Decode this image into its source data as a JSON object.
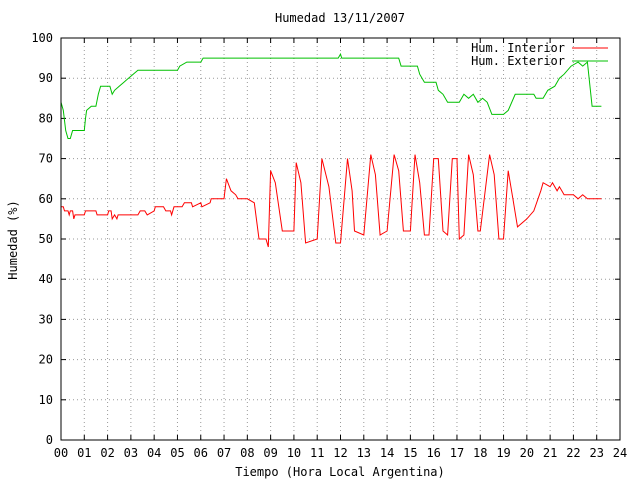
{
  "chart_data": {
    "type": "line",
    "title": "Humedad 13/11/2007",
    "xlabel": "Tiempo (Hora Local Argentina)",
    "ylabel": "Humedad (%)",
    "xlim": [
      0,
      24
    ],
    "ylim": [
      0,
      100
    ],
    "xticks": [
      "00",
      "01",
      "02",
      "03",
      "04",
      "05",
      "06",
      "07",
      "08",
      "09",
      "10",
      "11",
      "12",
      "13",
      "14",
      "15",
      "16",
      "17",
      "18",
      "19",
      "20",
      "21",
      "22",
      "23",
      "24"
    ],
    "yticks": [
      "0",
      "10",
      "20",
      "30",
      "40",
      "50",
      "60",
      "70",
      "80",
      "90",
      "100"
    ],
    "grid": true,
    "legend_position": "top-right",
    "series": [
      {
        "name": "Hum. Interior",
        "color": "#ff0000",
        "points": [
          [
            0,
            58
          ],
          [
            0.1,
            58
          ],
          [
            0.15,
            57
          ],
          [
            0.3,
            57
          ],
          [
            0.35,
            56
          ],
          [
            0.4,
            57
          ],
          [
            0.5,
            57
          ],
          [
            0.55,
            55
          ],
          [
            0.6,
            56
          ],
          [
            1.0,
            56
          ],
          [
            1.05,
            57
          ],
          [
            1.5,
            57
          ],
          [
            1.55,
            56
          ],
          [
            2.0,
            56
          ],
          [
            2.05,
            57
          ],
          [
            2.15,
            57
          ],
          [
            2.2,
            55
          ],
          [
            2.3,
            56
          ],
          [
            2.4,
            55
          ],
          [
            2.45,
            56
          ],
          [
            3.3,
            56
          ],
          [
            3.4,
            57
          ],
          [
            3.6,
            57
          ],
          [
            3.7,
            56
          ],
          [
            4.0,
            57
          ],
          [
            4.05,
            58
          ],
          [
            4.4,
            58
          ],
          [
            4.5,
            57
          ],
          [
            4.7,
            57
          ],
          [
            4.75,
            56
          ],
          [
            4.85,
            58
          ],
          [
            5.2,
            58
          ],
          [
            5.3,
            59
          ],
          [
            5.6,
            59
          ],
          [
            5.65,
            58
          ],
          [
            6.0,
            59
          ],
          [
            6.05,
            58
          ],
          [
            6.4,
            59
          ],
          [
            6.45,
            60
          ],
          [
            7.0,
            60
          ],
          [
            7.1,
            65
          ],
          [
            7.3,
            62
          ],
          [
            7.5,
            61
          ],
          [
            7.6,
            60
          ],
          [
            8.0,
            60
          ],
          [
            8.3,
            59
          ],
          [
            8.5,
            50
          ],
          [
            8.8,
            50
          ],
          [
            8.9,
            48
          ],
          [
            9.0,
            67
          ],
          [
            9.2,
            64
          ],
          [
            9.5,
            52
          ],
          [
            10.0,
            52
          ],
          [
            10.1,
            69
          ],
          [
            10.3,
            64
          ],
          [
            10.5,
            49
          ],
          [
            11.0,
            50
          ],
          [
            11.2,
            70
          ],
          [
            11.5,
            63
          ],
          [
            11.8,
            49
          ],
          [
            12.0,
            49
          ],
          [
            12.3,
            70
          ],
          [
            12.5,
            62
          ],
          [
            12.6,
            52
          ],
          [
            13.0,
            51
          ],
          [
            13.3,
            71
          ],
          [
            13.5,
            66
          ],
          [
            13.7,
            51
          ],
          [
            14.0,
            52
          ],
          [
            14.3,
            71
          ],
          [
            14.5,
            67
          ],
          [
            14.7,
            52
          ],
          [
            15.0,
            52
          ],
          [
            15.2,
            71
          ],
          [
            15.4,
            64
          ],
          [
            15.6,
            51
          ],
          [
            15.8,
            51
          ],
          [
            16.0,
            70
          ],
          [
            16.2,
            70
          ],
          [
            16.4,
            52
          ],
          [
            16.6,
            51
          ],
          [
            16.8,
            70
          ],
          [
            17.0,
            70
          ],
          [
            17.1,
            50
          ],
          [
            17.3,
            51
          ],
          [
            17.5,
            71
          ],
          [
            17.7,
            66
          ],
          [
            17.9,
            52
          ],
          [
            18.0,
            52
          ],
          [
            18.4,
            71
          ],
          [
            18.6,
            66
          ],
          [
            18.8,
            50
          ],
          [
            19.0,
            50
          ],
          [
            19.2,
            67
          ],
          [
            19.4,
            60
          ],
          [
            19.6,
            53
          ],
          [
            20.0,
            55
          ],
          [
            20.3,
            57
          ],
          [
            20.6,
            62
          ],
          [
            20.7,
            64
          ],
          [
            21.0,
            63
          ],
          [
            21.1,
            64
          ],
          [
            21.3,
            62
          ],
          [
            21.4,
            63
          ],
          [
            21.5,
            62
          ],
          [
            21.6,
            61
          ],
          [
            22.0,
            61
          ],
          [
            22.2,
            60
          ],
          [
            22.4,
            61
          ],
          [
            22.6,
            60
          ],
          [
            22.8,
            60
          ],
          [
            23.0,
            60
          ],
          [
            23.2,
            60
          ]
        ]
      },
      {
        "name": "Hum. Exterior",
        "color": "#00c000",
        "points": [
          [
            0,
            84
          ],
          [
            0.1,
            82
          ],
          [
            0.2,
            77
          ],
          [
            0.3,
            75
          ],
          [
            0.4,
            75
          ],
          [
            0.5,
            77
          ],
          [
            1.0,
            77
          ],
          [
            1.05,
            80
          ],
          [
            1.1,
            82
          ],
          [
            1.3,
            83
          ],
          [
            1.5,
            83
          ],
          [
            1.6,
            86
          ],
          [
            1.7,
            88
          ],
          [
            2.0,
            88
          ],
          [
            2.1,
            88
          ],
          [
            2.2,
            86
          ],
          [
            2.3,
            87
          ],
          [
            2.5,
            88
          ],
          [
            2.7,
            89
          ],
          [
            2.9,
            90
          ],
          [
            3.1,
            91
          ],
          [
            3.3,
            92
          ],
          [
            5.0,
            92
          ],
          [
            5.1,
            93
          ],
          [
            5.4,
            94
          ],
          [
            6.0,
            94
          ],
          [
            6.1,
            95
          ],
          [
            11.9,
            95
          ],
          [
            12.0,
            96
          ],
          [
            12.05,
            95
          ],
          [
            14.5,
            95
          ],
          [
            14.6,
            93
          ],
          [
            15.3,
            93
          ],
          [
            15.4,
            91
          ],
          [
            15.6,
            89
          ],
          [
            16.1,
            89
          ],
          [
            16.2,
            87
          ],
          [
            16.4,
            86
          ],
          [
            16.6,
            84
          ],
          [
            17.1,
            84
          ],
          [
            17.3,
            86
          ],
          [
            17.5,
            85
          ],
          [
            17.7,
            86
          ],
          [
            17.9,
            84
          ],
          [
            18.1,
            85
          ],
          [
            18.3,
            84
          ],
          [
            18.5,
            81
          ],
          [
            19.0,
            81
          ],
          [
            19.2,
            82
          ],
          [
            19.5,
            86
          ],
          [
            20.3,
            86
          ],
          [
            20.4,
            85
          ],
          [
            20.7,
            85
          ],
          [
            20.9,
            87
          ],
          [
            21.2,
            88
          ],
          [
            21.4,
            90
          ],
          [
            21.6,
            91
          ],
          [
            21.9,
            93
          ],
          [
            22.2,
            94
          ],
          [
            22.4,
            93
          ],
          [
            22.6,
            94
          ],
          [
            22.8,
            83
          ],
          [
            23.2,
            83
          ]
        ]
      }
    ]
  }
}
